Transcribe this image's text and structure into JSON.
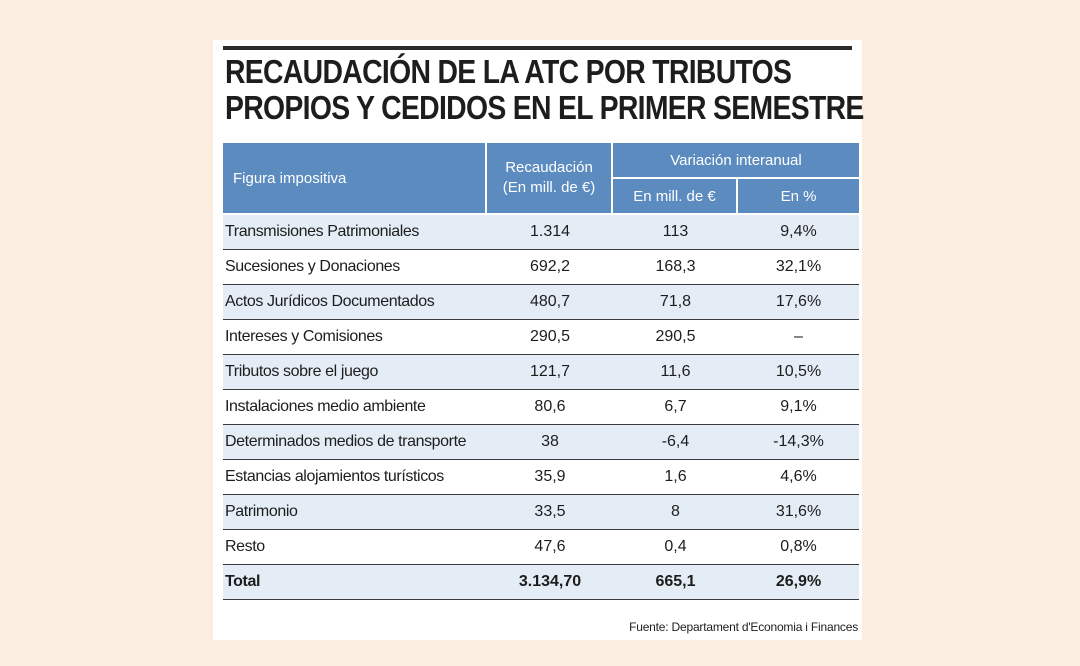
{
  "chart_data": {
    "type": "table",
    "title": "RECAUDACIÓN DE LA ATC POR TRIBUTOS PROPIOS Y CEDIDOS EN EL PRIMER SEMESTRE",
    "title_lines": [
      "RECAUDACIÓN DE LA ATC POR TRIBUTOS",
      "PROPIOS Y CEDIDOS EN EL PRIMER SEMESTRE"
    ],
    "headers": {
      "figura": "Figura impositiva",
      "recaudacion_line1": "Recaudación",
      "recaudacion_line2": "(En mill. de €)",
      "variacion": "Variación interanual",
      "var_mill": "En mill. de €",
      "var_pct": "En %"
    },
    "rows": [
      {
        "name": "Transmisiones Patrimoniales",
        "recaudacion": "1.314",
        "var_mill": "113",
        "var_pct": "9,4%"
      },
      {
        "name": "Sucesiones y Donaciones",
        "recaudacion": "692,2",
        "var_mill": "168,3",
        "var_pct": "32,1%"
      },
      {
        "name": "Actos Jurídicos Documentados",
        "recaudacion": "480,7",
        "var_mill": "71,8",
        "var_pct": "17,6%"
      },
      {
        "name": "Intereses y Comisiones",
        "recaudacion": "290,5",
        "var_mill": "290,5",
        "var_pct": "–"
      },
      {
        "name": "Tributos sobre el juego",
        "recaudacion": "121,7",
        "var_mill": "11,6",
        "var_pct": "10,5%"
      },
      {
        "name": "Instalaciones medio ambiente",
        "recaudacion": "80,6",
        "var_mill": "6,7",
        "var_pct": "9,1%"
      },
      {
        "name": "Determinados medios de transporte",
        "recaudacion": "38",
        "var_mill": "-6,4",
        "var_pct": "-14,3%"
      },
      {
        "name": "Estancias alojamientos turísticos",
        "recaudacion": "35,9",
        "var_mill": "1,6",
        "var_pct": "4,6%"
      },
      {
        "name": "Patrimonio",
        "recaudacion": "33,5",
        "var_mill": "8",
        "var_pct": "31,6%"
      },
      {
        "name": "Resto",
        "recaudacion": "47,6",
        "var_mill": "0,4",
        "var_pct": "0,8%"
      }
    ],
    "total": {
      "name": "Total",
      "recaudacion": "3.134,70",
      "var_mill": "665,1",
      "var_pct": "26,9%"
    },
    "source": "Fuente: Departament d'Economia i Finances",
    "colors": {
      "header": "#5b8bbf",
      "row_shade": "#e4edf6",
      "background": "#fbeee0"
    }
  }
}
